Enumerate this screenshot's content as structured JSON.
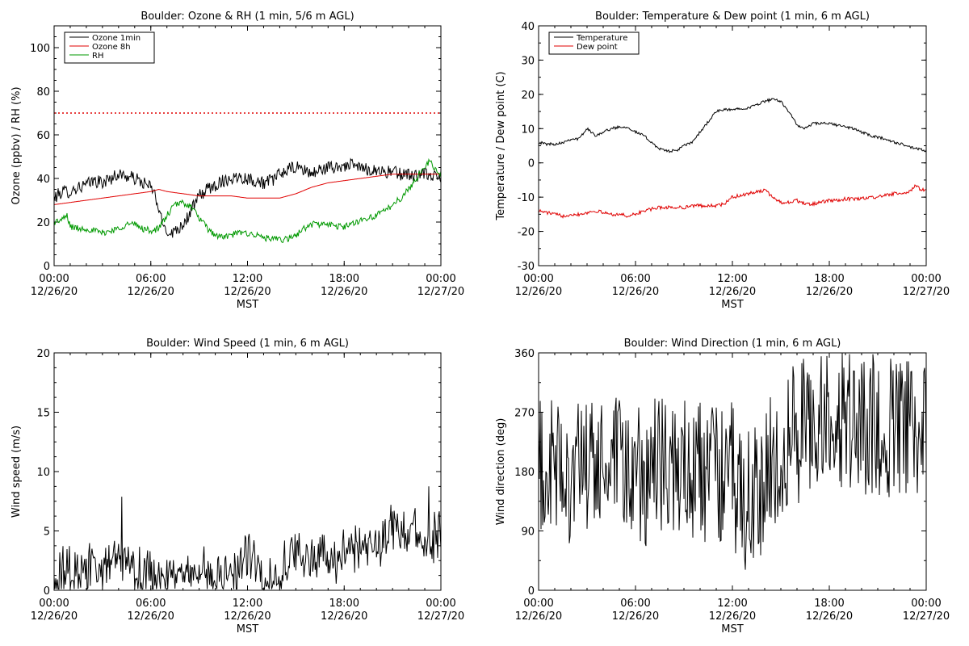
{
  "chart_data": [
    {
      "type": "line",
      "title": "Boulder: Ozone & RH (1 min, 5/6 m AGL)",
      "xlabel": "MST",
      "ylabel": "Ozone (ppbv) / RH (%)",
      "xlim": [
        0,
        24
      ],
      "ylim": [
        0,
        110
      ],
      "yticks": [
        0,
        20,
        40,
        60,
        80,
        100
      ],
      "xticks": [
        {
          "time": "00:00",
          "date": "12/26/20"
        },
        {
          "time": "06:00",
          "date": "12/26/20"
        },
        {
          "time": "12:00",
          "date": "12/26/20"
        },
        {
          "time": "18:00",
          "date": "12/26/20"
        },
        {
          "time": "00:00",
          "date": "12/27/20"
        }
      ],
      "legend_position": "top-left",
      "series": [
        {
          "name": "Ozone 1min",
          "color": "#000000",
          "noise": 3,
          "x": [
            0,
            0.5,
            1,
            1.5,
            2,
            2.5,
            3,
            3.5,
            4,
            4.5,
            5,
            5.5,
            6,
            6.3,
            6.6,
            6.9,
            7.2,
            7.5,
            7.8,
            8.1,
            8.5,
            9,
            9.5,
            10,
            10.5,
            11,
            11.5,
            12,
            12.5,
            13,
            13.5,
            14,
            14.5,
            15,
            15.5,
            16,
            16.5,
            17,
            17.5,
            18,
            18.5,
            19,
            19.5,
            20,
            20.5,
            21,
            21.5,
            22,
            22.5,
            23,
            23.5,
            24
          ],
          "y": [
            31,
            34,
            34,
            36,
            37,
            39,
            38,
            40,
            42,
            41,
            40,
            38,
            36,
            32,
            22,
            17,
            15,
            16,
            18,
            20,
            25,
            32,
            35,
            37,
            39,
            40,
            41,
            40,
            39,
            38,
            39,
            42,
            44,
            45,
            44,
            42,
            44,
            45,
            45,
            46,
            46,
            45,
            44,
            44,
            43,
            43,
            42,
            42,
            41,
            42,
            41,
            40
          ]
        },
        {
          "name": "Ozone 8h",
          "color": "#e00000",
          "noise": 0,
          "x": [
            0,
            1,
            2,
            3,
            4,
            5,
            6,
            6.5,
            7,
            8,
            9,
            10,
            11,
            12,
            13,
            14,
            15,
            16,
            17,
            18,
            19,
            20,
            21,
            22,
            23,
            24
          ],
          "y": [
            28,
            29,
            30,
            31,
            32,
            33,
            34,
            35,
            34,
            33,
            32,
            32,
            32,
            31,
            31,
            31,
            33,
            36,
            38,
            39,
            40,
            41,
            42,
            42,
            42,
            42
          ]
        },
        {
          "name": "RH",
          "color": "#009900",
          "noise": 1.5,
          "x": [
            0,
            0.5,
            0.8,
            1,
            1.5,
            2,
            2.5,
            3,
            3.5,
            4,
            4.5,
            5,
            5.5,
            6,
            6.5,
            7,
            7.5,
            8,
            8.5,
            9,
            9.5,
            10,
            10.5,
            11,
            11.5,
            12,
            12.5,
            13,
            13.5,
            14,
            14.5,
            15,
            15.5,
            16,
            16.5,
            17,
            17.5,
            18,
            18.5,
            19,
            19.5,
            20,
            20.5,
            21,
            21.5,
            22,
            22.5,
            23,
            23.3,
            23.6,
            24
          ],
          "y": [
            20,
            21,
            23,
            18,
            17,
            17,
            16,
            15,
            16,
            17,
            19,
            19,
            17,
            16,
            17,
            23,
            28,
            29,
            27,
            22,
            17,
            14,
            13,
            14,
            15,
            15,
            14,
            13,
            12,
            12,
            12,
            14,
            17,
            19,
            19,
            19,
            18,
            18,
            19,
            21,
            22,
            23,
            25,
            28,
            31,
            35,
            40,
            46,
            48,
            44,
            42
          ]
        }
      ],
      "reference_line": {
        "y": 70,
        "color": "#e00000",
        "style": "dotted"
      }
    },
    {
      "type": "line",
      "title": "Boulder: Temperature & Dew point (1 min, 6 m AGL)",
      "xlabel": "MST",
      "ylabel": "Temperature / Dew point (C)",
      "xlim": [
        0,
        24
      ],
      "ylim": [
        -30,
        40
      ],
      "yticks": [
        -30,
        -20,
        -10,
        0,
        10,
        20,
        30,
        40
      ],
      "xticks": [
        {
          "time": "00:00",
          "date": "12/26/20"
        },
        {
          "time": "06:00",
          "date": "12/26/20"
        },
        {
          "time": "12:00",
          "date": "12/26/20"
        },
        {
          "time": "18:00",
          "date": "12/26/20"
        },
        {
          "time": "00:00",
          "date": "12/27/20"
        }
      ],
      "legend_position": "top-left",
      "series": [
        {
          "name": "Temperature",
          "color": "#000000",
          "noise": 0.4,
          "x": [
            0,
            0.5,
            1,
            1.5,
            2,
            2.5,
            3,
            3.5,
            4,
            4.5,
            5,
            5.5,
            6,
            6.5,
            7,
            7.5,
            8,
            8.5,
            9,
            9.5,
            10,
            10.5,
            11,
            11.5,
            12,
            12.5,
            13,
            13.5,
            14,
            14.5,
            15,
            15.5,
            16,
            16.5,
            17,
            17.5,
            18,
            18.5,
            19,
            19.5,
            20,
            20.5,
            21,
            21.5,
            22,
            22.5,
            23,
            23.5,
            24
          ],
          "y": [
            6,
            5.5,
            5.5,
            6,
            7,
            7,
            10,
            8,
            9,
            10,
            10.5,
            10.5,
            9,
            8,
            6,
            4,
            3.5,
            3.5,
            5,
            6,
            9,
            12,
            15,
            15.5,
            15.5,
            16,
            16,
            17,
            18,
            18.5,
            18,
            15,
            11,
            10,
            11.5,
            11.5,
            11.5,
            11,
            10.5,
            10,
            9,
            8,
            7.5,
            7,
            6,
            5.5,
            4.5,
            4,
            3.5
          ]
        },
        {
          "name": "Dew point",
          "color": "#e00000",
          "noise": 0.5,
          "x": [
            0,
            0.5,
            1,
            1.5,
            2,
            2.5,
            3,
            3.5,
            4,
            4.5,
            5,
            5.5,
            6,
            6.5,
            7,
            7.5,
            8,
            8.5,
            9,
            9.5,
            10,
            10.5,
            11,
            11.5,
            12,
            12.5,
            13,
            13.5,
            14,
            14.5,
            15,
            15.5,
            16,
            16.5,
            17,
            17.5,
            18,
            18.5,
            19,
            19.5,
            20,
            20.5,
            21,
            21.5,
            22,
            22.5,
            23,
            23.3,
            23.6,
            24
          ],
          "y": [
            -14,
            -14.5,
            -15,
            -15.5,
            -15,
            -15,
            -14.5,
            -14,
            -14.5,
            -15,
            -15,
            -15.5,
            -15,
            -14,
            -13.5,
            -13,
            -13,
            -13,
            -13,
            -12.5,
            -12.5,
            -12.5,
            -12.5,
            -12,
            -10,
            -9.5,
            -9,
            -8.5,
            -8,
            -10,
            -11.5,
            -11.5,
            -11,
            -12,
            -12,
            -11.5,
            -11,
            -11,
            -10.5,
            -10.5,
            -10.5,
            -10,
            -10,
            -9.5,
            -9,
            -9,
            -8.5,
            -6.5,
            -7.5,
            -8
          ]
        }
      ]
    },
    {
      "type": "line",
      "title": "Boulder: Wind Speed (1 min, 6 m AGL)",
      "xlabel": "MST",
      "ylabel": "Wind speed (m/s)",
      "xlim": [
        0,
        24
      ],
      "ylim": [
        0,
        20
      ],
      "yticks": [
        0,
        5,
        10,
        15,
        20
      ],
      "xticks": [
        {
          "time": "00:00",
          "date": "12/26/20"
        },
        {
          "time": "06:00",
          "date": "12/26/20"
        },
        {
          "time": "12:00",
          "date": "12/26/20"
        },
        {
          "time": "18:00",
          "date": "12/26/20"
        },
        {
          "time": "00:00",
          "date": "12/27/20"
        }
      ],
      "series": [
        {
          "color": "#000000",
          "noise": 1.6,
          "x": [
            0,
            1,
            2,
            3,
            3.5,
            4,
            4.5,
            5,
            6,
            7,
            8,
            9,
            10,
            11,
            11.5,
            12,
            12.5,
            13,
            14,
            14.5,
            15,
            16,
            17,
            17.5,
            18,
            18.5,
            19,
            19.5,
            20,
            20.5,
            21,
            21.5,
            22,
            22.5,
            23,
            23.5,
            24
          ],
          "y": [
            1.5,
            1.5,
            1.5,
            2,
            3,
            3,
            2.5,
            1.5,
            1,
            1,
            1,
            1.2,
            1.3,
            1.5,
            2,
            3.5,
            2,
            1,
            1,
            2.5,
            3,
            3,
            2.5,
            2.5,
            3,
            4,
            4,
            4,
            4,
            4.5,
            5,
            5,
            5,
            5,
            4.5,
            4,
            5
          ]
        }
      ]
    },
    {
      "type": "line",
      "title": "Boulder: Wind Direction (1 min, 6 m AGL)",
      "xlabel": "MST",
      "ylabel": "Wind direction (deg)",
      "xlim": [
        0,
        24
      ],
      "ylim": [
        0,
        360
      ],
      "yticks": [
        0,
        90,
        180,
        270,
        360
      ],
      "xticks": [
        {
          "time": "00:00",
          "date": "12/26/20"
        },
        {
          "time": "06:00",
          "date": "12/26/20"
        },
        {
          "time": "12:00",
          "date": "12/26/20"
        },
        {
          "time": "18:00",
          "date": "12/26/20"
        },
        {
          "time": "00:00",
          "date": "12/27/20"
        }
      ],
      "series": [
        {
          "color": "#000000",
          "noise": 110,
          "x": [
            0,
            1,
            2,
            3,
            4,
            5,
            6,
            7,
            8,
            9,
            10,
            11,
            12,
            12.5,
            13,
            13.5,
            14,
            14.5,
            15,
            15.5,
            16,
            16.5,
            17,
            17.5,
            18,
            19,
            20,
            21,
            22,
            23,
            23.5,
            24
          ],
          "y": [
            180,
            180,
            180,
            180,
            190,
            180,
            170,
            180,
            190,
            180,
            180,
            170,
            180,
            130,
            140,
            150,
            170,
            190,
            210,
            230,
            240,
            250,
            255,
            260,
            260,
            255,
            255,
            250,
            250,
            245,
            240,
            235
          ]
        }
      ]
    }
  ]
}
